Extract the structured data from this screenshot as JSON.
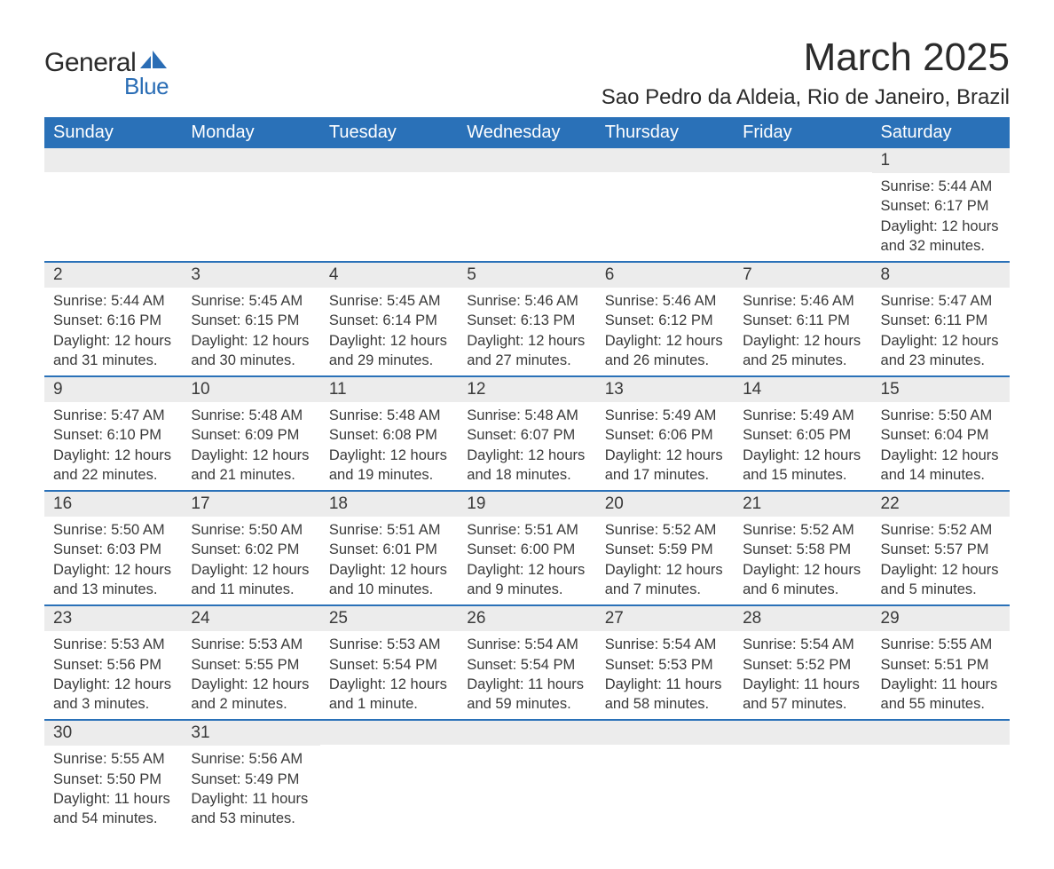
{
  "logo": {
    "text_top": "General",
    "text_bottom": "Blue",
    "shape_color": "#2a6db5"
  },
  "header": {
    "month_title": "March 2025",
    "location": "Sao Pedro da Aldeia, Rio de Janeiro, Brazil"
  },
  "colors": {
    "header_bg": "#2a71b8",
    "header_text": "#ffffff",
    "daynum_bg": "#ececec",
    "border": "#2a71b8",
    "body_text": "#3a3a3a",
    "page_bg": "#ffffff"
  },
  "typography": {
    "month_title_size_pt": 33,
    "location_size_pt": 18,
    "weekday_size_pt": 15,
    "daynum_size_pt": 14,
    "content_size_pt": 12
  },
  "weekdays": [
    "Sunday",
    "Monday",
    "Tuesday",
    "Wednesday",
    "Thursday",
    "Friday",
    "Saturday"
  ],
  "weeks": [
    [
      {
        "n": "",
        "sunrise": "",
        "sunset": "",
        "daylight1": "",
        "daylight2": ""
      },
      {
        "n": "",
        "sunrise": "",
        "sunset": "",
        "daylight1": "",
        "daylight2": ""
      },
      {
        "n": "",
        "sunrise": "",
        "sunset": "",
        "daylight1": "",
        "daylight2": ""
      },
      {
        "n": "",
        "sunrise": "",
        "sunset": "",
        "daylight1": "",
        "daylight2": ""
      },
      {
        "n": "",
        "sunrise": "",
        "sunset": "",
        "daylight1": "",
        "daylight2": ""
      },
      {
        "n": "",
        "sunrise": "",
        "sunset": "",
        "daylight1": "",
        "daylight2": ""
      },
      {
        "n": "1",
        "sunrise": "Sunrise: 5:44 AM",
        "sunset": "Sunset: 6:17 PM",
        "daylight1": "Daylight: 12 hours",
        "daylight2": "and 32 minutes."
      }
    ],
    [
      {
        "n": "2",
        "sunrise": "Sunrise: 5:44 AM",
        "sunset": "Sunset: 6:16 PM",
        "daylight1": "Daylight: 12 hours",
        "daylight2": "and 31 minutes."
      },
      {
        "n": "3",
        "sunrise": "Sunrise: 5:45 AM",
        "sunset": "Sunset: 6:15 PM",
        "daylight1": "Daylight: 12 hours",
        "daylight2": "and 30 minutes."
      },
      {
        "n": "4",
        "sunrise": "Sunrise: 5:45 AM",
        "sunset": "Sunset: 6:14 PM",
        "daylight1": "Daylight: 12 hours",
        "daylight2": "and 29 minutes."
      },
      {
        "n": "5",
        "sunrise": "Sunrise: 5:46 AM",
        "sunset": "Sunset: 6:13 PM",
        "daylight1": "Daylight: 12 hours",
        "daylight2": "and 27 minutes."
      },
      {
        "n": "6",
        "sunrise": "Sunrise: 5:46 AM",
        "sunset": "Sunset: 6:12 PM",
        "daylight1": "Daylight: 12 hours",
        "daylight2": "and 26 minutes."
      },
      {
        "n": "7",
        "sunrise": "Sunrise: 5:46 AM",
        "sunset": "Sunset: 6:11 PM",
        "daylight1": "Daylight: 12 hours",
        "daylight2": "and 25 minutes."
      },
      {
        "n": "8",
        "sunrise": "Sunrise: 5:47 AM",
        "sunset": "Sunset: 6:11 PM",
        "daylight1": "Daylight: 12 hours",
        "daylight2": "and 23 minutes."
      }
    ],
    [
      {
        "n": "9",
        "sunrise": "Sunrise: 5:47 AM",
        "sunset": "Sunset: 6:10 PM",
        "daylight1": "Daylight: 12 hours",
        "daylight2": "and 22 minutes."
      },
      {
        "n": "10",
        "sunrise": "Sunrise: 5:48 AM",
        "sunset": "Sunset: 6:09 PM",
        "daylight1": "Daylight: 12 hours",
        "daylight2": "and 21 minutes."
      },
      {
        "n": "11",
        "sunrise": "Sunrise: 5:48 AM",
        "sunset": "Sunset: 6:08 PM",
        "daylight1": "Daylight: 12 hours",
        "daylight2": "and 19 minutes."
      },
      {
        "n": "12",
        "sunrise": "Sunrise: 5:48 AM",
        "sunset": "Sunset: 6:07 PM",
        "daylight1": "Daylight: 12 hours",
        "daylight2": "and 18 minutes."
      },
      {
        "n": "13",
        "sunrise": "Sunrise: 5:49 AM",
        "sunset": "Sunset: 6:06 PM",
        "daylight1": "Daylight: 12 hours",
        "daylight2": "and 17 minutes."
      },
      {
        "n": "14",
        "sunrise": "Sunrise: 5:49 AM",
        "sunset": "Sunset: 6:05 PM",
        "daylight1": "Daylight: 12 hours",
        "daylight2": "and 15 minutes."
      },
      {
        "n": "15",
        "sunrise": "Sunrise: 5:50 AM",
        "sunset": "Sunset: 6:04 PM",
        "daylight1": "Daylight: 12 hours",
        "daylight2": "and 14 minutes."
      }
    ],
    [
      {
        "n": "16",
        "sunrise": "Sunrise: 5:50 AM",
        "sunset": "Sunset: 6:03 PM",
        "daylight1": "Daylight: 12 hours",
        "daylight2": "and 13 minutes."
      },
      {
        "n": "17",
        "sunrise": "Sunrise: 5:50 AM",
        "sunset": "Sunset: 6:02 PM",
        "daylight1": "Daylight: 12 hours",
        "daylight2": "and 11 minutes."
      },
      {
        "n": "18",
        "sunrise": "Sunrise: 5:51 AM",
        "sunset": "Sunset: 6:01 PM",
        "daylight1": "Daylight: 12 hours",
        "daylight2": "and 10 minutes."
      },
      {
        "n": "19",
        "sunrise": "Sunrise: 5:51 AM",
        "sunset": "Sunset: 6:00 PM",
        "daylight1": "Daylight: 12 hours",
        "daylight2": "and 9 minutes."
      },
      {
        "n": "20",
        "sunrise": "Sunrise: 5:52 AM",
        "sunset": "Sunset: 5:59 PM",
        "daylight1": "Daylight: 12 hours",
        "daylight2": "and 7 minutes."
      },
      {
        "n": "21",
        "sunrise": "Sunrise: 5:52 AM",
        "sunset": "Sunset: 5:58 PM",
        "daylight1": "Daylight: 12 hours",
        "daylight2": "and 6 minutes."
      },
      {
        "n": "22",
        "sunrise": "Sunrise: 5:52 AM",
        "sunset": "Sunset: 5:57 PM",
        "daylight1": "Daylight: 12 hours",
        "daylight2": "and 5 minutes."
      }
    ],
    [
      {
        "n": "23",
        "sunrise": "Sunrise: 5:53 AM",
        "sunset": "Sunset: 5:56 PM",
        "daylight1": "Daylight: 12 hours",
        "daylight2": "and 3 minutes."
      },
      {
        "n": "24",
        "sunrise": "Sunrise: 5:53 AM",
        "sunset": "Sunset: 5:55 PM",
        "daylight1": "Daylight: 12 hours",
        "daylight2": "and 2 minutes."
      },
      {
        "n": "25",
        "sunrise": "Sunrise: 5:53 AM",
        "sunset": "Sunset: 5:54 PM",
        "daylight1": "Daylight: 12 hours",
        "daylight2": "and 1 minute."
      },
      {
        "n": "26",
        "sunrise": "Sunrise: 5:54 AM",
        "sunset": "Sunset: 5:54 PM",
        "daylight1": "Daylight: 11 hours",
        "daylight2": "and 59 minutes."
      },
      {
        "n": "27",
        "sunrise": "Sunrise: 5:54 AM",
        "sunset": "Sunset: 5:53 PM",
        "daylight1": "Daylight: 11 hours",
        "daylight2": "and 58 minutes."
      },
      {
        "n": "28",
        "sunrise": "Sunrise: 5:54 AM",
        "sunset": "Sunset: 5:52 PM",
        "daylight1": "Daylight: 11 hours",
        "daylight2": "and 57 minutes."
      },
      {
        "n": "29",
        "sunrise": "Sunrise: 5:55 AM",
        "sunset": "Sunset: 5:51 PM",
        "daylight1": "Daylight: 11 hours",
        "daylight2": "and 55 minutes."
      }
    ],
    [
      {
        "n": "30",
        "sunrise": "Sunrise: 5:55 AM",
        "sunset": "Sunset: 5:50 PM",
        "daylight1": "Daylight: 11 hours",
        "daylight2": "and 54 minutes."
      },
      {
        "n": "31",
        "sunrise": "Sunrise: 5:56 AM",
        "sunset": "Sunset: 5:49 PM",
        "daylight1": "Daylight: 11 hours",
        "daylight2": "and 53 minutes."
      },
      {
        "n": "",
        "sunrise": "",
        "sunset": "",
        "daylight1": "",
        "daylight2": ""
      },
      {
        "n": "",
        "sunrise": "",
        "sunset": "",
        "daylight1": "",
        "daylight2": ""
      },
      {
        "n": "",
        "sunrise": "",
        "sunset": "",
        "daylight1": "",
        "daylight2": ""
      },
      {
        "n": "",
        "sunrise": "",
        "sunset": "",
        "daylight1": "",
        "daylight2": ""
      },
      {
        "n": "",
        "sunrise": "",
        "sunset": "",
        "daylight1": "",
        "daylight2": ""
      }
    ]
  ]
}
